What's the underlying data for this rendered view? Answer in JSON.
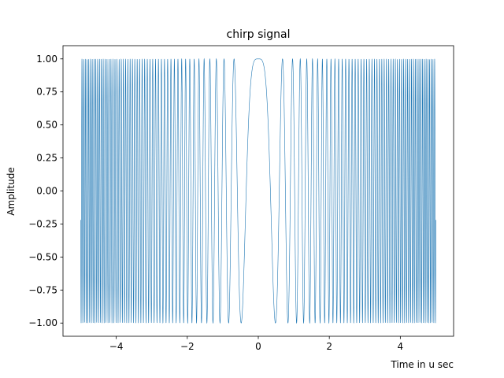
{
  "chart_data": {
    "type": "line",
    "title": "chirp signal",
    "xlabel": "Time in u sec",
    "ylabel": "Amplitude",
    "xlim": [
      -5.5,
      5.5
    ],
    "ylim": [
      -1.1,
      1.1
    ],
    "x_ticks": [
      -4,
      -2,
      0,
      2,
      4
    ],
    "x_tick_labels": [
      "−4",
      "−2",
      "0",
      "2",
      "4"
    ],
    "y_ticks": [
      -1.0,
      -0.75,
      -0.5,
      -0.25,
      0.0,
      0.25,
      0.5,
      0.75,
      1.0
    ],
    "y_tick_labels": [
      "−1.00",
      "−0.75",
      "−0.50",
      "−0.25",
      "0.00",
      "0.25",
      "0.50",
      "0.75",
      "1.00"
    ],
    "grid": false,
    "series": [
      {
        "function": "cos(chirp_rate * x^2)",
        "chirp_rate": 13.5,
        "x_range": [
          -5,
          5
        ],
        "color": "#1f77b4"
      }
    ]
  }
}
